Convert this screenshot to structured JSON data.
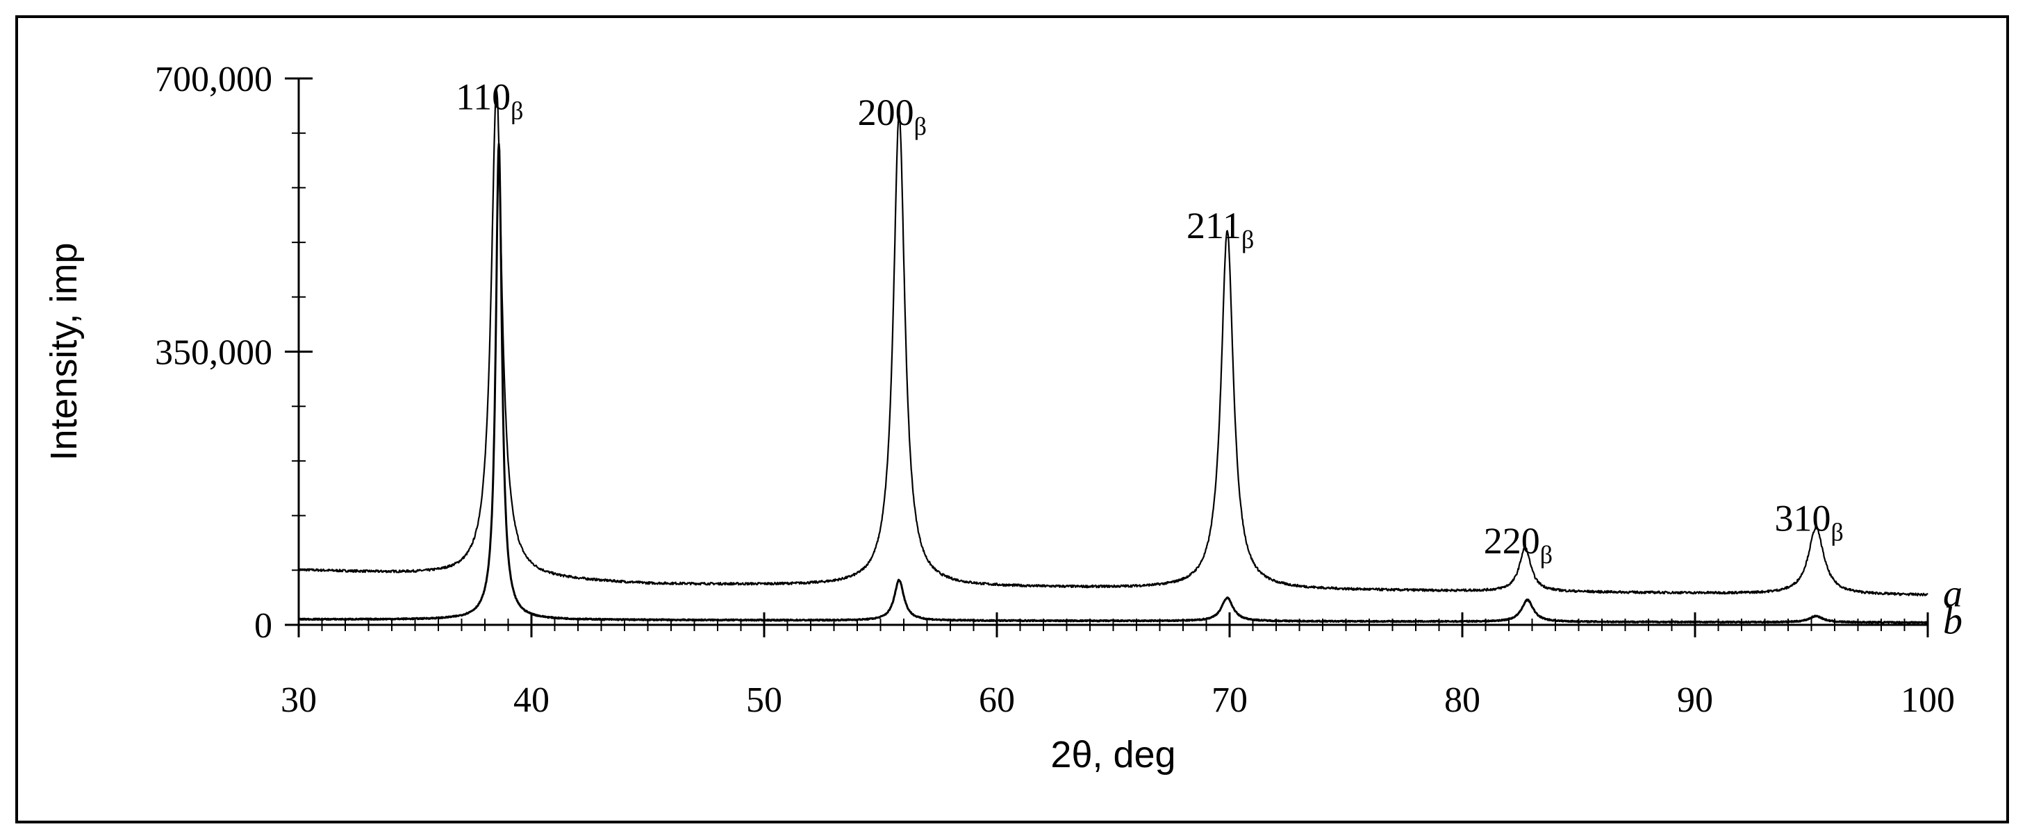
{
  "chart_data": {
    "type": "line",
    "title": "",
    "xlabel": "2θ, deg",
    "ylabel": "Intensity, imp",
    "xlim": [
      30,
      100
    ],
    "ylim": [
      0,
      700000
    ],
    "xticks": [
      30,
      40,
      50,
      60,
      70,
      80,
      90,
      100
    ],
    "xtick_labels": [
      "30",
      "40",
      "50",
      "60",
      "70",
      "80",
      "90",
      "100"
    ],
    "yticks": [
      0,
      350000,
      700000
    ],
    "ytick_labels": [
      "0",
      "350,000",
      "700,000"
    ],
    "grid": false,
    "legend": "none",
    "line_color": "#000000",
    "series": [
      {
        "name": "a",
        "baseline": [
          [
            30,
            70000
          ],
          [
            36,
            64000
          ],
          [
            45,
            52000
          ],
          [
            60,
            48000
          ],
          [
            80,
            43000
          ],
          [
            100,
            38000
          ]
        ],
        "peaks": [
          {
            "x": 38.5,
            "y": 625000,
            "w": 0.28
          },
          {
            "x": 55.8,
            "y": 605000,
            "w": 0.3
          },
          {
            "x": 69.9,
            "y": 460000,
            "w": 0.32
          },
          {
            "x": 82.7,
            "y": 56000,
            "w": 0.3
          },
          {
            "x": 95.2,
            "y": 85000,
            "w": 0.4
          }
        ]
      },
      {
        "name": "b",
        "baseline": [
          [
            30,
            7000
          ],
          [
            100,
            3000
          ]
        ],
        "peaks": [
          {
            "x": 38.6,
            "y": 610000,
            "w": 0.16
          },
          {
            "x": 55.8,
            "y": 52000,
            "w": 0.25
          },
          {
            "x": 69.9,
            "y": 30000,
            "w": 0.3
          },
          {
            "x": 82.8,
            "y": 28000,
            "w": 0.3
          },
          {
            "x": 95.2,
            "y": 8000,
            "w": 0.35
          }
        ]
      }
    ],
    "annotations": [
      {
        "text": "110",
        "sub": "β",
        "x": 38.5,
        "y": 625000
      },
      {
        "text": "200",
        "sub": "β",
        "x": 55.8,
        "y": 605000
      },
      {
        "text": "211",
        "sub": "β",
        "x": 69.9,
        "y": 460000
      },
      {
        "text": "220",
        "sub": "β",
        "x": 82.7,
        "y": 56000
      },
      {
        "text": "310",
        "sub": "β",
        "x": 95.2,
        "y": 85000
      }
    ]
  }
}
